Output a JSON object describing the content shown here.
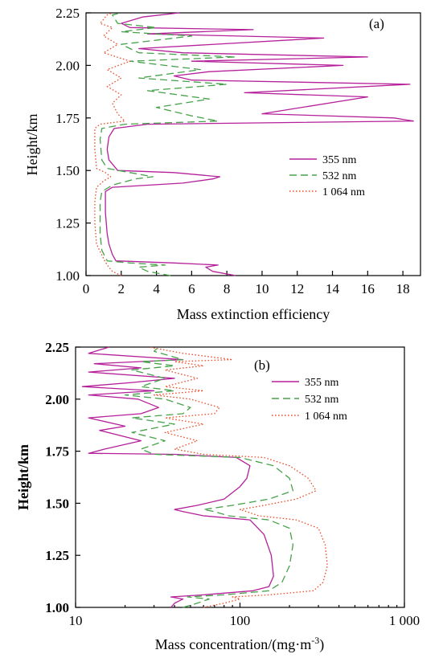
{
  "chart_data": [
    {
      "type": "line",
      "panel_label": "(a)",
      "xlabel": "Mass extinction efficiency",
      "ylabel": "Height/km",
      "xlim": [
        0,
        19
      ],
      "ylim": [
        1.0,
        2.25
      ],
      "x_scale": "linear",
      "x_ticks": [
        0,
        2,
        4,
        6,
        8,
        10,
        12,
        14,
        16,
        18
      ],
      "x_tick_labels": [
        "0",
        "2",
        "4",
        "6",
        "8",
        "10",
        "12",
        "14",
        "16",
        "18"
      ],
      "y_ticks": [
        1.0,
        1.25,
        1.5,
        1.75,
        2.0,
        2.25
      ],
      "y_tick_labels": [
        "1.00",
        "1.25",
        "1.50",
        "1.75",
        "2.00",
        "2.25"
      ],
      "legend_position": "right",
      "series": [
        {
          "name": "355 nm",
          "color": "#b5209a",
          "style": "solid",
          "points": [
            [
              8.5,
              1.0
            ],
            [
              7.2,
              1.02
            ],
            [
              6.8,
              1.04
            ],
            [
              7.5,
              1.05
            ],
            [
              5.0,
              1.06
            ],
            [
              1.7,
              1.07
            ],
            [
              1.5,
              1.1
            ],
            [
              1.3,
              1.15
            ],
            [
              1.2,
              1.2
            ],
            [
              1.1,
              1.3
            ],
            [
              1.1,
              1.4
            ],
            [
              1.5,
              1.42
            ],
            [
              5.5,
              1.44
            ],
            [
              7.2,
              1.46
            ],
            [
              7.6,
              1.47
            ],
            [
              5.0,
              1.49
            ],
            [
              1.8,
              1.5
            ],
            [
              1.3,
              1.55
            ],
            [
              1.2,
              1.6
            ],
            [
              1.3,
              1.66
            ],
            [
              1.6,
              1.7
            ],
            [
              3.5,
              1.72
            ],
            [
              18.6,
              1.735
            ],
            [
              17.5,
              1.75
            ],
            [
              10.0,
              1.77
            ],
            [
              16.0,
              1.85
            ],
            [
              9.0,
              1.87
            ],
            [
              18.4,
              1.91
            ],
            [
              6.0,
              1.93
            ],
            [
              5.0,
              1.95
            ],
            [
              7.0,
              1.97
            ],
            [
              14.6,
              2.0
            ],
            [
              6.0,
              2.02
            ],
            [
              16.0,
              2.04
            ],
            [
              5.5,
              2.06
            ],
            [
              3.0,
              2.08
            ],
            [
              13.5,
              2.13
            ],
            [
              3.5,
              2.15
            ],
            [
              9.5,
              2.17
            ],
            [
              2.5,
              2.18
            ],
            [
              2.0,
              2.2
            ],
            [
              3.2,
              2.23
            ],
            [
              5.3,
              2.25
            ]
          ]
        },
        {
          "name": "532 nm",
          "color": "#46a24a",
          "style": "dashed",
          "points": [
            [
              4.8,
              1.0
            ],
            [
              3.5,
              1.02
            ],
            [
              3.0,
              1.04
            ],
            [
              4.5,
              1.05
            ],
            [
              2.5,
              1.06
            ],
            [
              1.2,
              1.07
            ],
            [
              0.9,
              1.12
            ],
            [
              0.8,
              1.2
            ],
            [
              0.8,
              1.35
            ],
            [
              0.9,
              1.4
            ],
            [
              1.5,
              1.43
            ],
            [
              2.8,
              1.46
            ],
            [
              3.8,
              1.47
            ],
            [
              2.5,
              1.49
            ],
            [
              1.2,
              1.51
            ],
            [
              0.9,
              1.55
            ],
            [
              0.8,
              1.65
            ],
            [
              0.9,
              1.7
            ],
            [
              2.2,
              1.72
            ],
            [
              7.5,
              1.735
            ],
            [
              6.0,
              1.76
            ],
            [
              4.0,
              1.8
            ],
            [
              7.0,
              1.84
            ],
            [
              3.5,
              1.88
            ],
            [
              8.0,
              1.91
            ],
            [
              3.0,
              1.94
            ],
            [
              6.5,
              1.98
            ],
            [
              2.5,
              2.02
            ],
            [
              8.5,
              2.04
            ],
            [
              3.0,
              2.06
            ],
            [
              2.0,
              2.1
            ],
            [
              6.0,
              2.14
            ],
            [
              2.0,
              2.16
            ],
            [
              4.0,
              2.18
            ],
            [
              1.8,
              2.2
            ],
            [
              1.5,
              2.24
            ],
            [
              2.0,
              2.25
            ]
          ]
        },
        {
          "name": "1 064 nm",
          "color": "#e8502e",
          "style": "dotted",
          "points": [
            [
              2.0,
              1.0
            ],
            [
              1.5,
              1.02
            ],
            [
              1.2,
              1.05
            ],
            [
              1.0,
              1.08
            ],
            [
              0.6,
              1.15
            ],
            [
              0.5,
              1.25
            ],
            [
              0.5,
              1.35
            ],
            [
              0.6,
              1.42
            ],
            [
              1.0,
              1.45
            ],
            [
              1.4,
              1.47
            ],
            [
              1.1,
              1.49
            ],
            [
              0.6,
              1.51
            ],
            [
              0.5,
              1.6
            ],
            [
              0.5,
              1.7
            ],
            [
              0.8,
              1.72
            ],
            [
              2.2,
              1.735
            ],
            [
              1.8,
              1.77
            ],
            [
              1.5,
              1.82
            ],
            [
              2.0,
              1.86
            ],
            [
              1.2,
              1.9
            ],
            [
              2.0,
              1.94
            ],
            [
              1.2,
              1.98
            ],
            [
              2.5,
              2.02
            ],
            [
              1.0,
              2.06
            ],
            [
              1.8,
              2.1
            ],
            [
              1.0,
              2.14
            ],
            [
              1.5,
              2.18
            ],
            [
              0.8,
              2.2
            ],
            [
              1.2,
              2.24
            ],
            [
              1.5,
              2.25
            ]
          ]
        }
      ]
    },
    {
      "type": "line",
      "panel_label": "(b)",
      "xlabel": "Mass concentration/(mg·m",
      "xlabel_sup": "-3",
      "xlabel_close": ")",
      "ylabel": "Height/km",
      "xlim": [
        10,
        1000
      ],
      "ylim": [
        1.0,
        2.25
      ],
      "x_scale": "log",
      "x_ticks": [
        10,
        100,
        1000
      ],
      "x_tick_labels": [
        "10",
        "100",
        "1 000"
      ],
      "y_ticks": [
        1.0,
        1.25,
        1.5,
        1.75,
        2.0,
        2.25
      ],
      "y_tick_labels": [
        "1.00",
        "1.25",
        "1.50",
        "1.75",
        "2.00",
        "2.25"
      ],
      "legend_position": "top-right",
      "series": [
        {
          "name": "355 nm",
          "color": "#b5209a",
          "style": "solid",
          "points": [
            [
              38,
              1.0
            ],
            [
              40,
              1.02
            ],
            [
              45,
              1.04
            ],
            [
              38,
              1.05
            ],
            [
              60,
              1.06
            ],
            [
              120,
              1.08
            ],
            [
              150,
              1.1
            ],
            [
              160,
              1.15
            ],
            [
              155,
              1.25
            ],
            [
              140,
              1.35
            ],
            [
              115,
              1.42
            ],
            [
              60,
              1.44
            ],
            [
              45,
              1.46
            ],
            [
              40,
              1.47
            ],
            [
              55,
              1.49
            ],
            [
              80,
              1.52
            ],
            [
              100,
              1.58
            ],
            [
              110,
              1.62
            ],
            [
              115,
              1.68
            ],
            [
              95,
              1.72
            ],
            [
              40,
              1.735
            ],
            [
              12,
              1.74
            ],
            [
              15,
              1.76
            ],
            [
              25,
              1.8
            ],
            [
              14,
              1.85
            ],
            [
              20,
              1.87
            ],
            [
              12,
              1.91
            ],
            [
              25,
              1.93
            ],
            [
              32,
              1.96
            ],
            [
              24,
              2.0
            ],
            [
              12,
              2.02
            ],
            [
              30,
              2.04
            ],
            [
              11,
              2.06
            ],
            [
              22,
              2.08
            ],
            [
              40,
              2.1
            ],
            [
              12,
              2.13
            ],
            [
              25,
              2.15
            ],
            [
              13,
              2.17
            ],
            [
              45,
              2.19
            ],
            [
              12,
              2.22
            ],
            [
              16,
              2.25
            ]
          ]
        },
        {
          "name": "532 nm",
          "color": "#46a24a",
          "style": "dashed",
          "points": [
            [
              45,
              1.0
            ],
            [
              55,
              1.02
            ],
            [
              65,
              1.04
            ],
            [
              48,
              1.05
            ],
            [
              80,
              1.06
            ],
            [
              150,
              1.08
            ],
            [
              180,
              1.12
            ],
            [
              200,
              1.2
            ],
            [
              210,
              1.3
            ],
            [
              200,
              1.38
            ],
            [
              150,
              1.42
            ],
            [
              85,
              1.44
            ],
            [
              70,
              1.46
            ],
            [
              60,
              1.47
            ],
            [
              90,
              1.49
            ],
            [
              150,
              1.52
            ],
            [
              210,
              1.56
            ],
            [
              200,
              1.62
            ],
            [
              160,
              1.68
            ],
            [
              100,
              1.72
            ],
            [
              30,
              1.735
            ],
            [
              25,
              1.76
            ],
            [
              35,
              1.8
            ],
            [
              22,
              1.84
            ],
            [
              40,
              1.88
            ],
            [
              22,
              1.91
            ],
            [
              45,
              1.93
            ],
            [
              50,
              1.96
            ],
            [
              35,
              2.0
            ],
            [
              20,
              2.02
            ],
            [
              40,
              2.04
            ],
            [
              25,
              2.06
            ],
            [
              35,
              2.1
            ],
            [
              22,
              2.14
            ],
            [
              40,
              2.16
            ],
            [
              25,
              2.18
            ],
            [
              45,
              2.19
            ],
            [
              30,
              2.23
            ],
            [
              32,
              2.25
            ]
          ]
        },
        {
          "name": "1 064 nm",
          "color": "#e8502e",
          "style": "dotted",
          "points": [
            [
              60,
              1.0
            ],
            [
              80,
              1.02
            ],
            [
              100,
              1.04
            ],
            [
              90,
              1.05
            ],
            [
              150,
              1.06
            ],
            [
              280,
              1.08
            ],
            [
              320,
              1.12
            ],
            [
              340,
              1.2
            ],
            [
              330,
              1.3
            ],
            [
              300,
              1.38
            ],
            [
              220,
              1.42
            ],
            [
              130,
              1.44
            ],
            [
              110,
              1.46
            ],
            [
              100,
              1.47
            ],
            [
              140,
              1.49
            ],
            [
              220,
              1.52
            ],
            [
              290,
              1.56
            ],
            [
              260,
              1.62
            ],
            [
              200,
              1.68
            ],
            [
              140,
              1.72
            ],
            [
              60,
              1.735
            ],
            [
              40,
              1.76
            ],
            [
              55,
              1.8
            ],
            [
              35,
              1.84
            ],
            [
              60,
              1.88
            ],
            [
              35,
              1.91
            ],
            [
              70,
              1.93
            ],
            [
              75,
              1.96
            ],
            [
              50,
              2.0
            ],
            [
              30,
              2.02
            ],
            [
              60,
              2.04
            ],
            [
              35,
              2.06
            ],
            [
              55,
              2.1
            ],
            [
              35,
              2.14
            ],
            [
              60,
              2.16
            ],
            [
              40,
              2.18
            ],
            [
              90,
              2.19
            ],
            [
              45,
              2.22
            ],
            [
              28,
              2.25
            ]
          ]
        }
      ]
    }
  ]
}
